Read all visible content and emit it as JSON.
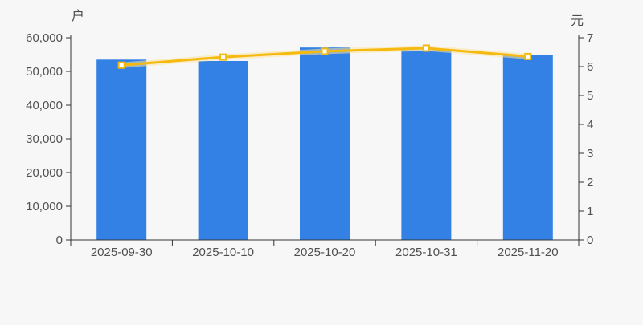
{
  "chart_data": {
    "type": "bar",
    "subtype": "bar-line-dual-axis",
    "categories": [
      "2025-09-30",
      "2025-10-10",
      "2025-10-20",
      "2025-10-31",
      "2025-11-20"
    ],
    "series": [
      {
        "id": "bar-series",
        "type": "bar",
        "axis": "left",
        "unit": "户",
        "color": "#3381e4",
        "values": [
          53500,
          53100,
          57100,
          56300,
          54800
        ]
      },
      {
        "id": "line-series",
        "type": "line",
        "axis": "right",
        "unit": "元",
        "color": "#f5b90f",
        "marker": "square",
        "marker_fill": "#ffffff",
        "values": [
          6.05,
          6.33,
          6.53,
          6.64,
          6.35
        ]
      }
    ],
    "left_axis": {
      "name": "户",
      "min": 0,
      "max": 60000,
      "interval": 10000,
      "tick_labels": [
        "0",
        "10,000",
        "20,000",
        "30,000",
        "40,000",
        "50,000",
        "60,000"
      ]
    },
    "right_axis": {
      "name": "元",
      "min": 0,
      "max": 7,
      "interval": 1,
      "tick_labels": [
        "0",
        "1",
        "2",
        "3",
        "4",
        "5",
        "6",
        "7"
      ]
    },
    "grid_lines": false,
    "legend": false,
    "background": "#f7f7f8",
    "axis_line_color": "#333333",
    "label_color": "#505050"
  }
}
